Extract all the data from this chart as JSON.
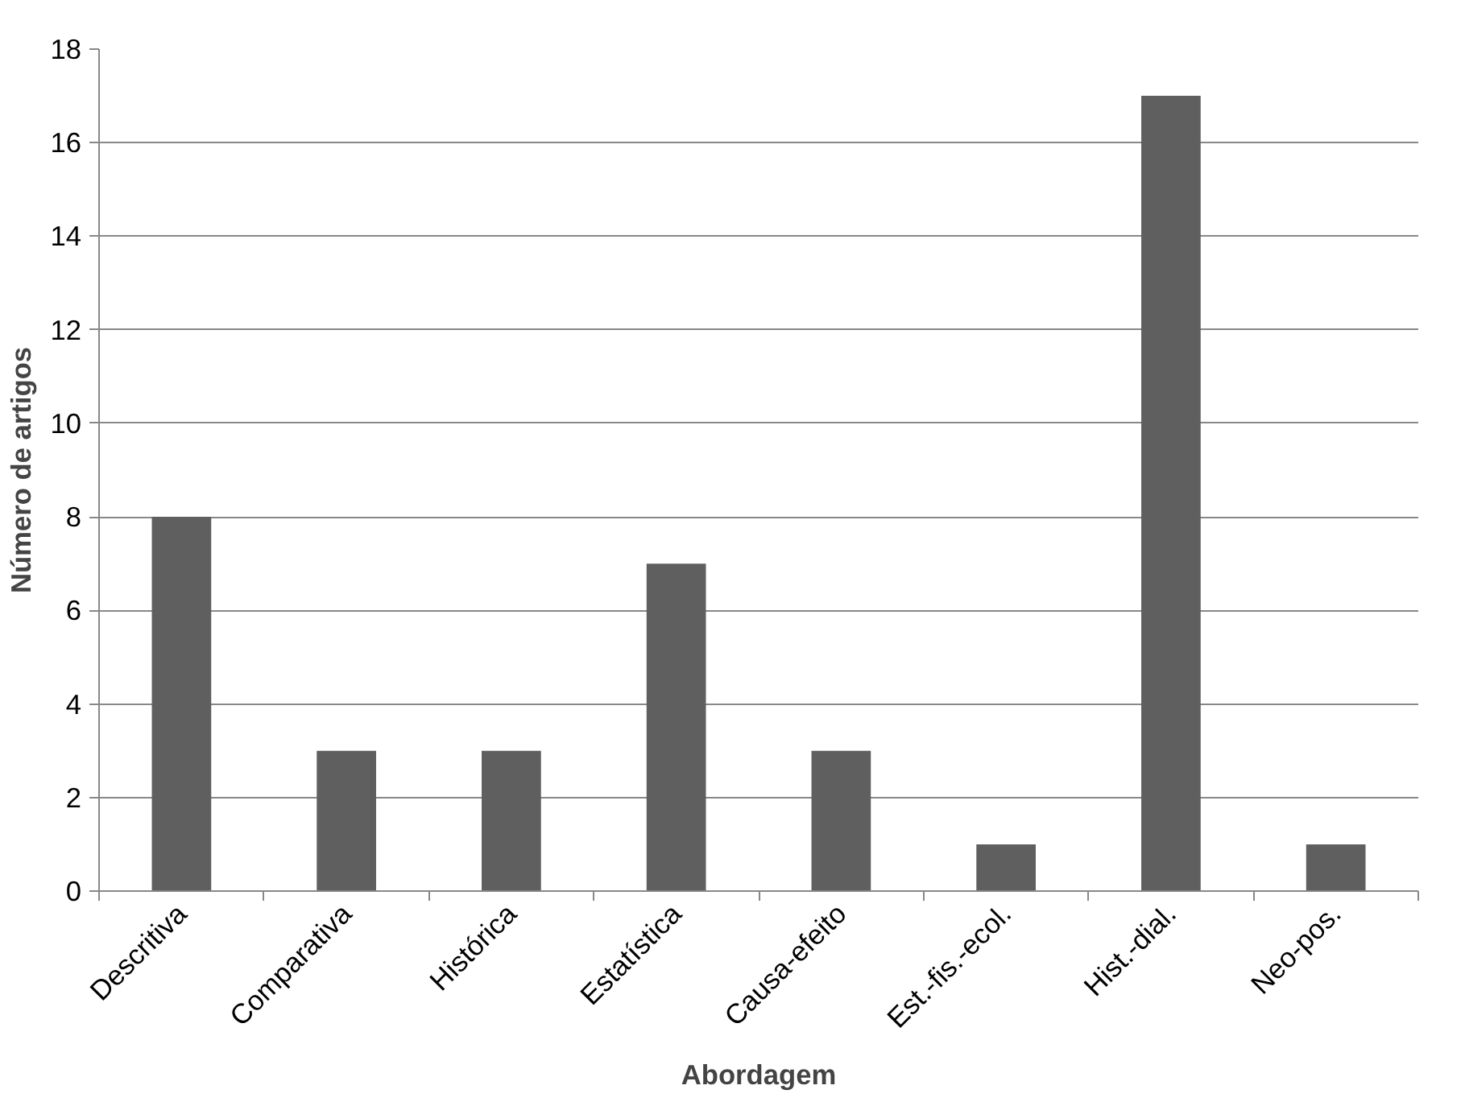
{
  "chart_data": {
    "type": "bar",
    "xlabel": "Abordagem",
    "ylabel": "Número de artigos",
    "categories": [
      "Descritiva",
      "Comparativa",
      "Histórica",
      "Estatística",
      "Causa-efeito",
      "Est.-fis.-ecol.",
      "Hist.-dial.",
      "Neo-pos."
    ],
    "values": [
      8,
      3,
      3,
      7,
      3,
      1,
      17,
      1
    ],
    "color": "#5f5f5f",
    "ylim": [
      0,
      18
    ],
    "yticks": [
      0,
      2,
      4,
      6,
      8,
      10,
      12,
      14,
      16,
      18
    ],
    "grid": "y"
  }
}
